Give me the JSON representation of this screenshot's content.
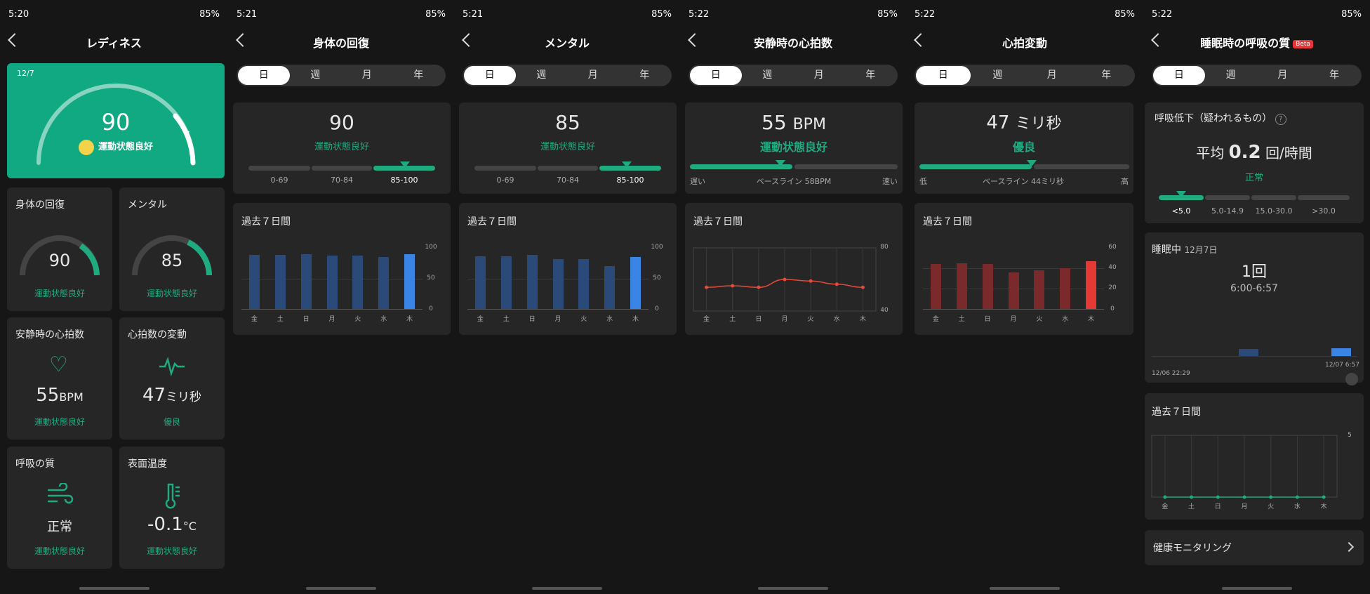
{
  "status": [
    {
      "time": "5:20",
      "battery": "85%"
    },
    {
      "time": "5:21",
      "battery": "85%"
    },
    {
      "time": "5:21",
      "battery": "85%"
    },
    {
      "time": "5:22",
      "battery": "85%"
    },
    {
      "time": "5:22",
      "battery": "85%"
    },
    {
      "time": "5:22",
      "battery": "85%"
    }
  ],
  "tabs": [
    "日",
    "週",
    "月",
    "年"
  ],
  "week": [
    "金",
    "土",
    "日",
    "月",
    "火",
    "水",
    "木"
  ],
  "past7": "過去７日間",
  "colors": {
    "accent": "#1faa80",
    "bar_dark_blue": "#2a4a7a",
    "bar_blue": "#3a84e6",
    "bar_dark_red": "#7a2a2a",
    "bar_red": "#e53935",
    "line": "#e54a3a"
  },
  "p1": {
    "title": "レディネス",
    "date": "12/7",
    "score": "90",
    "status": "運動状態良好",
    "recovery": {
      "title": "身体の回復",
      "value": "90",
      "status": "運動状態良好"
    },
    "mental": {
      "title": "メンタル",
      "value": "85",
      "status": "運動状態良好"
    },
    "rhr": {
      "title": "安静時の心拍数",
      "value": "55",
      "unit": "BPM",
      "status": "運動状態良好"
    },
    "hrv": {
      "title": "心拍数の変動",
      "value": "47",
      "unit": "ミリ秒",
      "status": "優良"
    },
    "breath": {
      "title": "呼吸の質",
      "value": "正常",
      "status": "運動状態良好"
    },
    "temp": {
      "title": "表面温度",
      "value": "-0.1",
      "unit": "°C",
      "status": "運動状態良好"
    }
  },
  "p2": {
    "title": "身体の回復",
    "score": "90",
    "status": "運動状態良好",
    "ranges": [
      "0-69",
      "70-84",
      "85-100"
    ],
    "ymax": "100",
    "ymid": "50",
    "ymin": "0",
    "values": [
      88,
      89,
      90,
      87,
      87,
      85,
      90
    ]
  },
  "p3": {
    "title": "メンタル",
    "score": "85",
    "status": "運動状態良好",
    "ranges": [
      "0-69",
      "70-84",
      "85-100"
    ],
    "ymax": "100",
    "ymid": "50",
    "ymin": "0",
    "values": [
      86,
      86,
      88,
      82,
      82,
      70,
      85
    ]
  },
  "p4": {
    "title": "安静時の心拍数",
    "score": "55",
    "unit": "BPM",
    "status": "運動状態良好",
    "left": "遅い",
    "mid": "ベースライン 58BPM",
    "right": "速い",
    "ymax": "80",
    "ymin": "40",
    "values": [
      55,
      56,
      55,
      60,
      59,
      57,
      55
    ]
  },
  "p5": {
    "title": "心拍変動",
    "score": "47",
    "unit": "ミリ秒",
    "status": "優良",
    "left": "低",
    "mid": "ベースライン 44ミリ秒",
    "right": "高",
    "ymax": "60",
    "y40": "40",
    "y20": "20",
    "ymin": "0",
    "values": [
      44,
      45,
      44,
      36,
      38,
      40,
      47
    ]
  },
  "p6": {
    "title": "睡眠時の呼吸の質",
    "beta": "Beta",
    "section": "呼吸低下（疑われるもの）",
    "avg_label": "平均",
    "avg": "0.2",
    "avg_unit": "回/時間",
    "status": "正常",
    "ranges": [
      "<5.0",
      "5.0-14.9",
      "15.0-30.0",
      ">30.0"
    ],
    "sleep_label": "睡眠中",
    "sleep_date": "12月7日",
    "count": "1回",
    "span": "6:00-6:57",
    "start": "12/06 22:29",
    "end": "12/07 6:57",
    "ymax": "5",
    "values": [
      0,
      0,
      0,
      0,
      0,
      0,
      0
    ],
    "monitor": "健康モニタリング"
  }
}
